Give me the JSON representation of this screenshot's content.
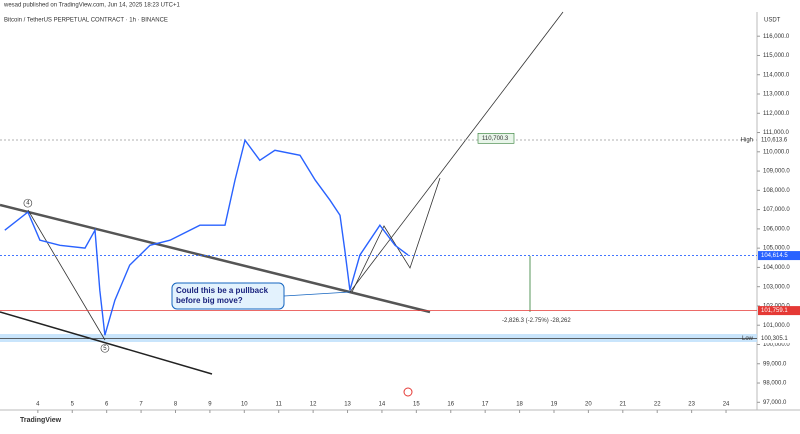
{
  "header": {
    "publisher": "wesad published on TradingView.com, Jun 14, 2025 18:23 UTC+1",
    "symbol": "Bitcoin / TetherUS PERPETUAL CONTRACT · 1h · BINANCE"
  },
  "footer": {
    "brand": "TradingView"
  },
  "chart_data": {
    "type": "line",
    "ylabel": "USDT",
    "color": "#2962ff",
    "x": [
      3.04,
      3.71,
      4.06,
      4.64,
      5.37,
      5.66,
      5.8,
      5.95,
      6.24,
      6.67,
      7.26,
      7.84,
      8.71,
      9.44,
      9.73,
      10.02,
      10.45,
      10.89,
      11.62,
      12.06,
      12.49,
      12.78,
      12.92,
      13.07,
      13.36,
      13.94,
      14.38,
      14.76
    ],
    "values": [
      105930,
      106870,
      105410,
      105150,
      105000,
      105930,
      102820,
      100480,
      102300,
      104120,
      105150,
      105410,
      106190,
      106190,
      108530,
      110600,
      109560,
      110080,
      109820,
      108530,
      107490,
      106710,
      104900,
      102820,
      104640,
      106190,
      105150,
      104640
    ],
    "xlim": [
      2.9,
      24.9
    ],
    "ylim": [
      96600,
      117100
    ],
    "xticks": [
      4,
      5,
      6,
      7,
      8,
      9,
      10,
      11,
      12,
      13,
      14,
      15,
      16,
      17,
      18,
      19,
      20,
      21,
      22,
      23,
      24
    ],
    "yticks": [
      {
        "value": 97000,
        "label": "97,000.0"
      },
      {
        "value": 98000,
        "label": "98,000.0"
      },
      {
        "value": 99000,
        "label": "99,000.0"
      },
      {
        "value": 100000,
        "label": "100,000.0"
      },
      {
        "value": 101000,
        "label": "101,000.0"
      },
      {
        "value": 102000,
        "label": "102,000.0"
      },
      {
        "value": 103000,
        "label": "103,000.0"
      },
      {
        "value": 104000,
        "label": "104,000.0"
      },
      {
        "value": 105000,
        "label": "105,000.0"
      },
      {
        "value": 106000,
        "label": "106,000.0"
      },
      {
        "value": 107000,
        "label": "107,000.0"
      },
      {
        "value": 108000,
        "label": "108,000.0"
      },
      {
        "value": 109000,
        "label": "109,000.0"
      },
      {
        "value": 110000,
        "label": "110,000.0"
      },
      {
        "value": 111000,
        "label": "111,000.0"
      },
      {
        "value": 112000,
        "label": "112,000.0"
      },
      {
        "value": 113000,
        "label": "113,000.0"
      },
      {
        "value": 114000,
        "label": "114,000.0"
      },
      {
        "value": 115000,
        "label": "115,000.0"
      },
      {
        "value": 116000,
        "label": "116,000.0"
      }
    ],
    "high": {
      "label": "High",
      "value": 110613.6,
      "value_label": "110,613.6"
    },
    "low": {
      "label": "Low",
      "value": 100305.1,
      "value_label": "100,305.1"
    },
    "current": {
      "value": 104614.5,
      "value_label": "104,614.5"
    },
    "stop": {
      "value": 101759.1,
      "value_label": "101,759.1"
    },
    "target": {
      "value": 110700.3,
      "value_label": "110,700.3"
    },
    "measure": "-2,826.3 (-2.75%) -28,262",
    "annotation": "Could this be a pullback before big move?",
    "wave_labels": [
      {
        "label": "4",
        "x": 3.71,
        "value": 106870
      },
      {
        "label": "5",
        "x": 5.95,
        "value": 100480
      }
    ]
  }
}
